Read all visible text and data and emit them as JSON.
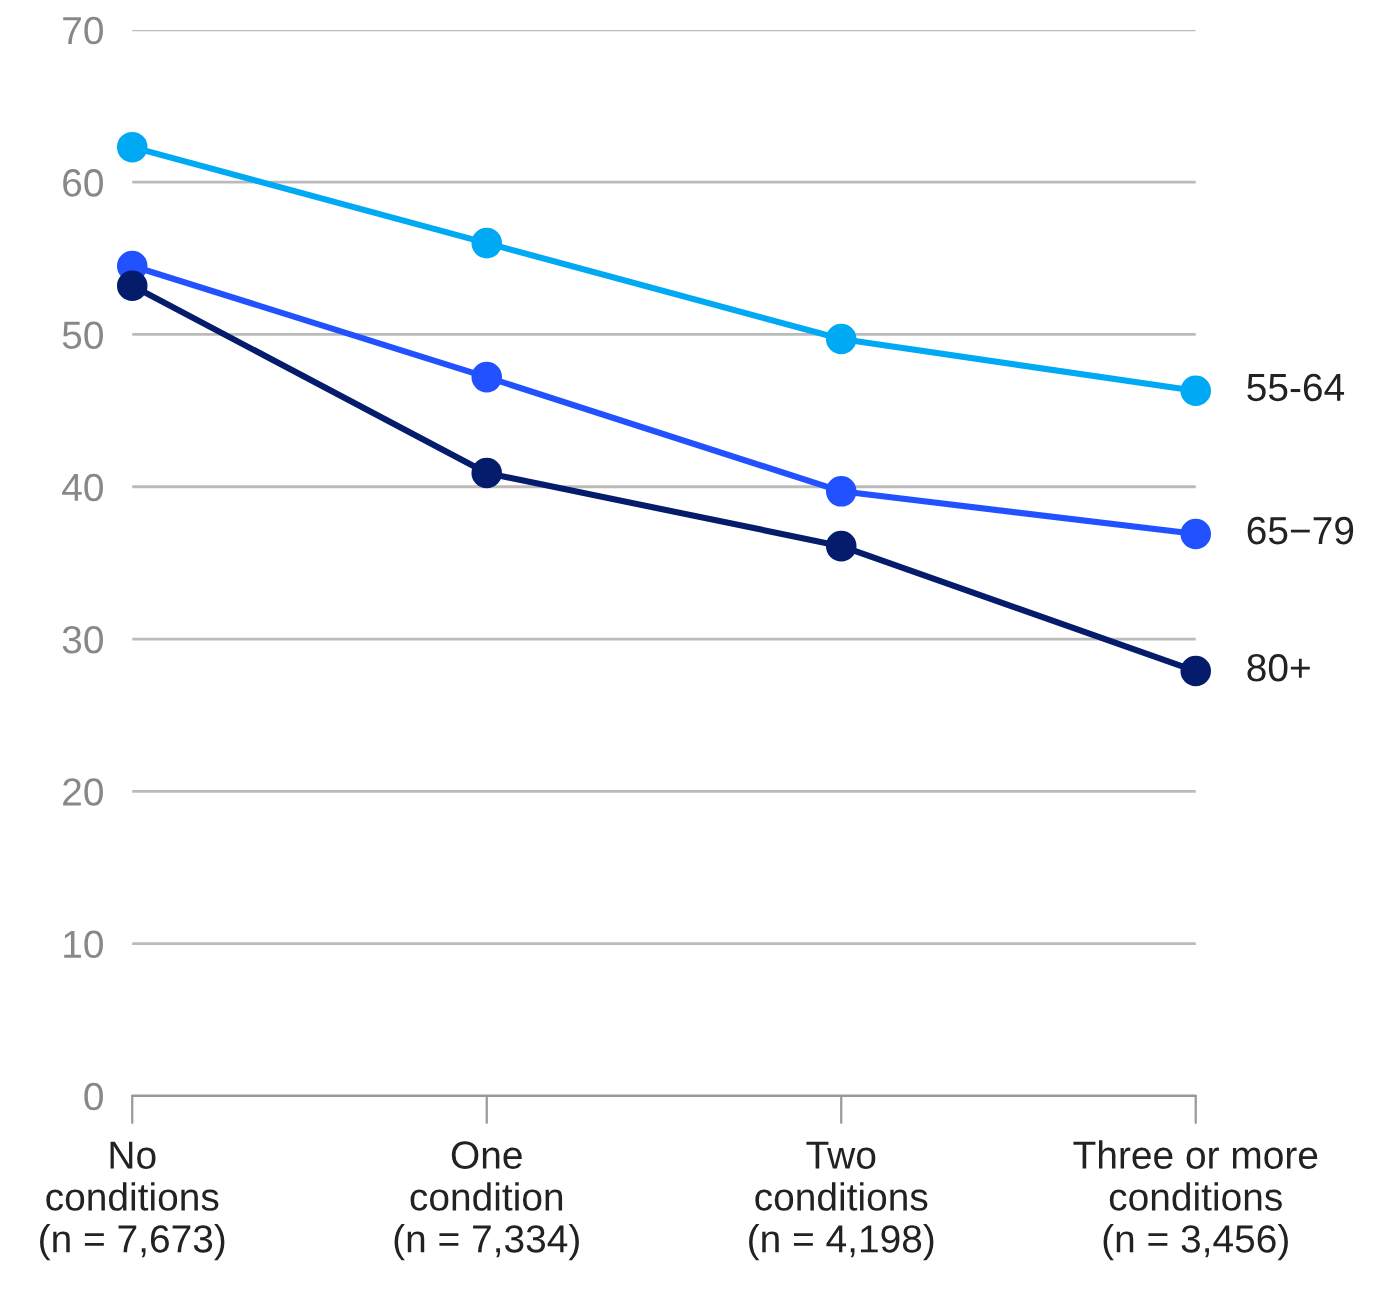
{
  "chart_data": {
    "type": "line",
    "categories": [
      "No\nconditions\n(n = 7,673)",
      "One\ncondition\n(n = 7,334)",
      "Two\nconditions\n(n = 4,198)",
      "Three or more\nconditions\n(n = 3,456)"
    ],
    "series": [
      {
        "name": "55-64",
        "color": "#00a9f4",
        "values": [
          62.3,
          56.0,
          49.7,
          46.3
        ]
      },
      {
        "name": "65−79",
        "color": "#2251ff",
        "values": [
          54.5,
          47.2,
          39.7,
          36.9
        ]
      },
      {
        "name": "80+",
        "color": "#051c6c",
        "values": [
          53.2,
          40.9,
          36.1,
          27.9
        ]
      }
    ],
    "ylim": [
      0,
      70
    ],
    "yticks": [
      0,
      10,
      20,
      30,
      40,
      50,
      60,
      70
    ],
    "grid": "y",
    "marker": "circle",
    "line_style": "solid",
    "legend": false
  }
}
